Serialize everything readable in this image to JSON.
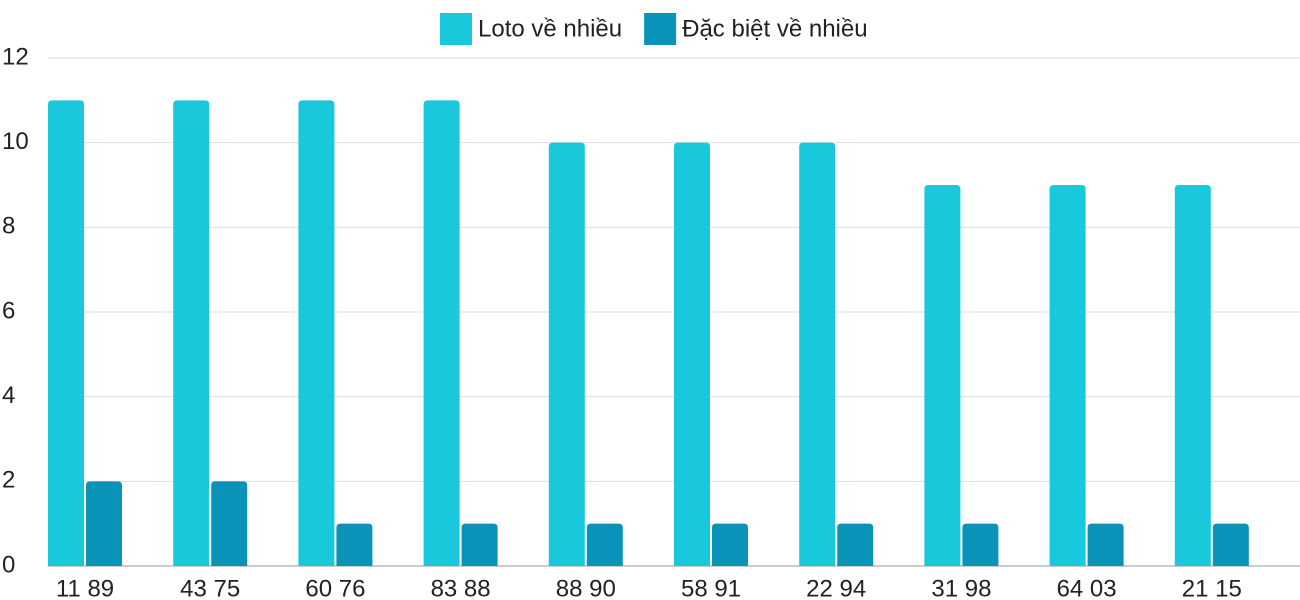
{
  "chart_data": {
    "type": "bar",
    "categories": [
      "11 89",
      "43 75",
      "60 76",
      "83 88",
      "88 90",
      "58 91",
      "22 94",
      "31 98",
      "64 03",
      "21 15"
    ],
    "series": [
      {
        "name": "Loto về nhiều",
        "color": "#1ac8dc",
        "values": [
          11,
          11,
          11,
          11,
          10,
          10,
          10,
          9,
          9,
          9
        ]
      },
      {
        "name": "Đặc biệt về nhiều",
        "color": "#0a93b8",
        "values": [
          2,
          2,
          1,
          1,
          1,
          1,
          1,
          1,
          1,
          1
        ]
      }
    ],
    "ylim": [
      0,
      12
    ],
    "yticks": [
      0,
      2,
      4,
      6,
      8,
      10,
      12
    ],
    "grid": true,
    "legend": "top"
  }
}
